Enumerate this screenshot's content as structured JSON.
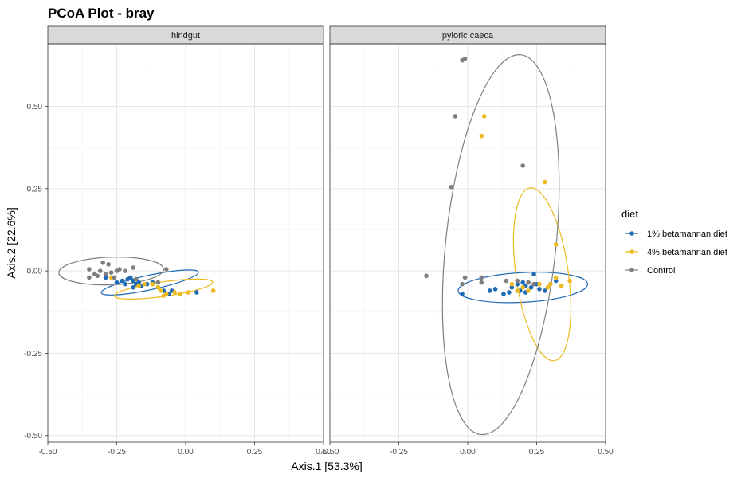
{
  "chart_data": {
    "type": "scatter",
    "title": "PCoA Plot - bray",
    "xlabel": "Axis.1   [53.3%]",
    "ylabel": "Axis.2   [22.6%]",
    "xlim": [
      -0.5,
      0.5
    ],
    "ylim": [
      -0.52,
      0.69
    ],
    "x_ticks": [
      -0.5,
      -0.25,
      0.0,
      0.25,
      0.5
    ],
    "x_tick_labels": [
      "-0.50",
      "-0.25",
      "0.00",
      "0.25",
      "0.50"
    ],
    "y_ticks": [
      -0.5,
      -0.25,
      0.0,
      0.25,
      0.5
    ],
    "y_tick_labels": [
      "-0.50",
      "-0.25",
      "0.00",
      "0.25",
      "0.50"
    ],
    "grid": true,
    "legend": {
      "title": "diet",
      "position": "right",
      "entries": [
        "1% betamannan diet",
        "4% betamannan diet",
        "Control"
      ]
    },
    "colors": {
      "1% betamannan diet": "#1F6AB5",
      "4% betamannan diet": "#EDBB1F",
      "Control": "#7F7F7F"
    },
    "facets": [
      {
        "label": "hindgut",
        "series": [
          {
            "name": "1% betamannan diet",
            "points": [
              [
                -0.29,
                -0.02
              ],
              [
                -0.25,
                -0.035
              ],
              [
                -0.23,
                -0.03
              ],
              [
                -0.21,
                -0.025
              ],
              [
                -0.2,
                -0.02
              ],
              [
                -0.19,
                -0.03
              ],
              [
                -0.18,
                -0.04
              ],
              [
                -0.17,
                -0.035
              ],
              [
                -0.16,
                -0.045
              ],
              [
                -0.14,
                -0.04
              ],
              [
                -0.12,
                -0.035
              ],
              [
                -0.1,
                -0.05
              ],
              [
                -0.08,
                -0.06
              ],
              [
                -0.06,
                -0.07
              ],
              [
                -0.05,
                -0.06
              ],
              [
                0.04,
                -0.065
              ],
              [
                -0.22,
                -0.04
              ],
              [
                -0.19,
                -0.05
              ]
            ],
            "ellipse": {
              "center": [
                -0.13,
                -0.035
              ],
              "radius_x": 0.18,
              "radius_y": 0.022,
              "angle_deg": -12
            }
          },
          {
            "name": "4% betamannan diet",
            "points": [
              [
                -0.27,
                -0.02
              ],
              [
                -0.17,
                -0.045
              ],
              [
                -0.12,
                -0.04
              ],
              [
                -0.1,
                -0.05
              ],
              [
                -0.09,
                -0.06
              ],
              [
                -0.07,
                -0.07
              ],
              [
                -0.04,
                -0.065
              ],
              [
                -0.02,
                -0.07
              ],
              [
                0.01,
                -0.065
              ],
              [
                0.1,
                -0.06
              ],
              [
                -0.15,
                -0.04
              ],
              [
                -0.08,
                -0.075
              ]
            ],
            "ellipse": {
              "center": [
                -0.08,
                -0.055
              ],
              "radius_x": 0.18,
              "radius_y": 0.022,
              "angle_deg": -8
            }
          },
          {
            "name": "Control",
            "points": [
              [
                -0.35,
                0.005
              ],
              [
                -0.33,
                -0.01
              ],
              [
                -0.32,
                -0.015
              ],
              [
                -0.31,
                0.0
              ],
              [
                -0.3,
                0.025
              ],
              [
                -0.28,
                0.02
              ],
              [
                -0.27,
                -0.005
              ],
              [
                -0.26,
                -0.02
              ],
              [
                -0.25,
                0.0
              ],
              [
                -0.24,
                0.005
              ],
              [
                -0.22,
                0.0
              ],
              [
                -0.19,
                0.01
              ],
              [
                -0.18,
                -0.025
              ],
              [
                -0.1,
                -0.035
              ],
              [
                -0.07,
                0.005
              ],
              [
                -0.35,
                -0.02
              ],
              [
                -0.29,
                -0.01
              ]
            ],
            "ellipse": {
              "center": [
                -0.27,
                0.0
              ],
              "radius_x": 0.19,
              "radius_y": 0.042,
              "angle_deg": -2
            }
          }
        ]
      },
      {
        "label": "pyloric caeca",
        "series": [
          {
            "name": "1% betamannan diet",
            "points": [
              [
                -0.02,
                -0.07
              ],
              [
                0.08,
                -0.06
              ],
              [
                0.1,
                -0.055
              ],
              [
                0.13,
                -0.07
              ],
              [
                0.15,
                -0.065
              ],
              [
                0.16,
                -0.05
              ],
              [
                0.18,
                -0.04
              ],
              [
                0.2,
                -0.035
              ],
              [
                0.21,
                -0.045
              ],
              [
                0.23,
                -0.05
              ],
              [
                0.24,
                -0.01
              ],
              [
                0.25,
                -0.04
              ],
              [
                0.26,
                -0.055
              ],
              [
                0.28,
                -0.06
              ],
              [
                0.3,
                -0.04
              ],
              [
                0.32,
                -0.03
              ],
              [
                0.21,
                -0.065
              ],
              [
                0.19,
                -0.06
              ]
            ],
            "ellipse": {
              "center": [
                0.2,
                -0.05
              ],
              "radius_x": 0.235,
              "radius_y": 0.045,
              "angle_deg": -3
            }
          },
          {
            "name": "4% betamannan diet",
            "points": [
              [
                0.06,
                0.47
              ],
              [
                0.05,
                0.41
              ],
              [
                0.28,
                0.27
              ],
              [
                0.32,
                0.08
              ],
              [
                0.37,
                -0.03
              ],
              [
                0.32,
                -0.02
              ],
              [
                0.3,
                -0.04
              ],
              [
                0.26,
                -0.04
              ],
              [
                0.2,
                -0.05
              ],
              [
                0.16,
                -0.04
              ],
              [
                0.18,
                -0.06
              ],
              [
                0.22,
                -0.06
              ],
              [
                0.29,
                -0.05
              ],
              [
                0.34,
                -0.045
              ]
            ],
            "ellipse": {
              "center": [
                0.27,
                -0.01
              ],
              "radius_x": 0.095,
              "radius_y": 0.265,
              "angle_deg": -8
            }
          },
          {
            "name": "Control",
            "points": [
              [
                -0.02,
                0.64
              ],
              [
                -0.01,
                0.645
              ],
              [
                -0.045,
                0.47
              ],
              [
                0.2,
                0.32
              ],
              [
                -0.06,
                0.255
              ],
              [
                -0.15,
                -0.015
              ],
              [
                -0.01,
                -0.02
              ],
              [
                0.05,
                -0.02
              ],
              [
                0.05,
                -0.035
              ],
              [
                -0.02,
                -0.04
              ],
              [
                0.14,
                -0.03
              ],
              [
                0.18,
                -0.03
              ],
              [
                0.24,
                -0.04
              ],
              [
                0.22,
                -0.035
              ]
            ],
            "ellipse": {
              "center": [
                0.12,
                0.08
              ],
              "radius_x": 0.2,
              "radius_y": 0.58,
              "angle_deg": 6
            }
          }
        ]
      }
    ]
  }
}
